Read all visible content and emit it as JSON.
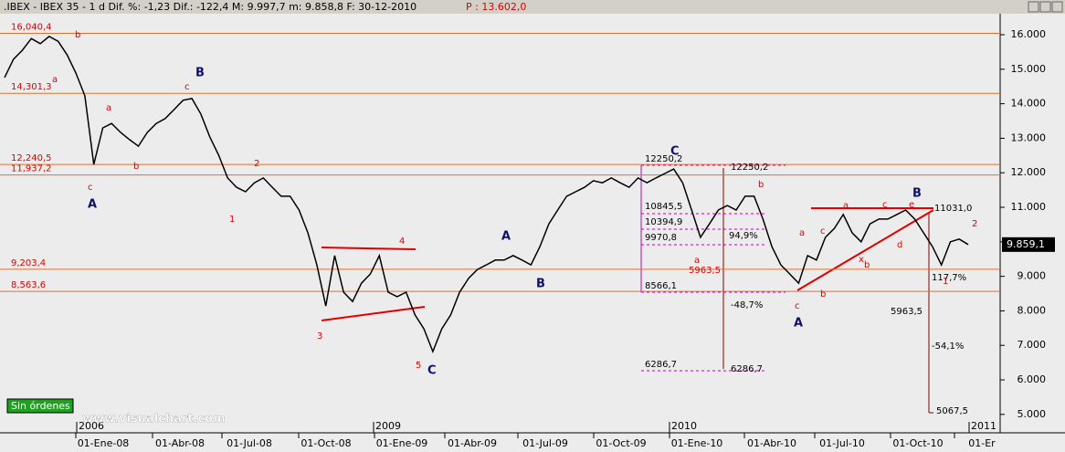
{
  "chart_data": {
    "type": "line",
    "title": ".IBEX - IBEX 35 - 1 d Dif. %: -1,23 Dif.: -122,4 M: 9.997,7 m: 9.858,8 F: 30-12-2010",
    "price_label": "P : 13.602,0",
    "series": [
      {
        "name": "IBEX 35",
        "color": "#000000",
        "values": [
          14760,
          15290,
          15550,
          15890,
          15740,
          15950,
          15810,
          15420,
          14890,
          14230,
          12240,
          13300,
          13430,
          13170,
          12960,
          12770,
          13170,
          13430,
          13570,
          13830,
          14100,
          14150,
          13700,
          13040,
          12510,
          11850,
          11580,
          11450,
          11710,
          11850,
          11580,
          11320,
          11320,
          10920,
          10260,
          9330,
          8140,
          9600,
          8540,
          8270,
          8800,
          9070,
          9600,
          8540,
          8410,
          8540,
          7880,
          7480,
          6820,
          7480,
          7880,
          8540,
          8940,
          9200,
          9330,
          9470,
          9470,
          9600,
          9470,
          9330,
          9860,
          10520,
          10920,
          11320,
          11450,
          11580,
          11770,
          11710,
          11850,
          11710,
          11580,
          11850,
          11710,
          11850,
          11980,
          12110,
          11710,
          10920,
          10130,
          10520,
          10920,
          11050,
          10920,
          11320,
          11320,
          10660,
          9860,
          9330,
          9070,
          8800,
          9600,
          9470,
          10130,
          10390,
          10790,
          10260,
          10000,
          10520,
          10660,
          10660,
          10790,
          10920,
          10660,
          10260,
          9860,
          9330,
          10000,
          10080,
          9920
        ]
      }
    ],
    "last_label": "9.859,1",
    "ylim": [
      4466,
      16688
    ],
    "yticks": [
      {
        "value": 5000,
        "label": "5.000"
      },
      {
        "value": 6000,
        "label": "6.000"
      },
      {
        "value": 7000,
        "label": "7.000"
      },
      {
        "value": 8000,
        "label": "8.000"
      },
      {
        "value": 9000,
        "label": "9.000"
      },
      {
        "value": 10000,
        "label": "10.000"
      },
      {
        "value": 11000,
        "label": "11.000"
      },
      {
        "value": 12000,
        "label": "12.000"
      },
      {
        "value": 13000,
        "label": "13.000"
      },
      {
        "value": 14000,
        "label": "14.000"
      },
      {
        "value": 15000,
        "label": "15.000"
      },
      {
        "value": 16000,
        "label": "16.000"
      }
    ],
    "hlines": [
      {
        "value": 16040.4,
        "label": "16,040,4"
      },
      {
        "value": 14301.3,
        "label": "14,301,3"
      },
      {
        "value": 12240.5,
        "label": "12,240,5"
      },
      {
        "value": 11937.2,
        "label": "11,937,2"
      },
      {
        "value": 9203.4,
        "label": "9,203,4"
      },
      {
        "value": 8563.6,
        "label": "8,563,6"
      }
    ],
    "xlabels": [
      "01-Ene-08",
      "01-Abr-08",
      "01-Jul-08",
      "01-Oct-08",
      "01-Ene-09",
      "01-Abr-09",
      "01-Jul-09",
      "01-Oct-09",
      "01-Ene-10",
      "01-Abr-10",
      "01-Jul-10",
      "01-Oct-10",
      "01-Er"
    ],
    "years": [
      "2006",
      "2009",
      "2010",
      "2011"
    ],
    "annotations": [
      "b",
      "a",
      "a",
      "c",
      "b",
      "c",
      "2",
      "1",
      "4",
      "3",
      "5",
      "a",
      "b",
      "a",
      "c",
      "b",
      "c",
      "a",
      "x",
      "b",
      "c",
      "e",
      "d",
      "2",
      "1",
      "A",
      "B",
      "C",
      "A",
      "B",
      "C",
      "A",
      "B",
      "12250,2",
      "12250,2",
      "10845,5",
      "10394,9",
      "9970,8",
      "8566,1",
      "6286,7",
      "6286,7",
      "5963,5",
      "94,9%",
      "-48,7%",
      "11031,0",
      "117,7%",
      "5963,5",
      "-54,1%",
      "5067,5"
    ],
    "status": "Sin órdenes",
    "website": "www.visualchart.com"
  }
}
